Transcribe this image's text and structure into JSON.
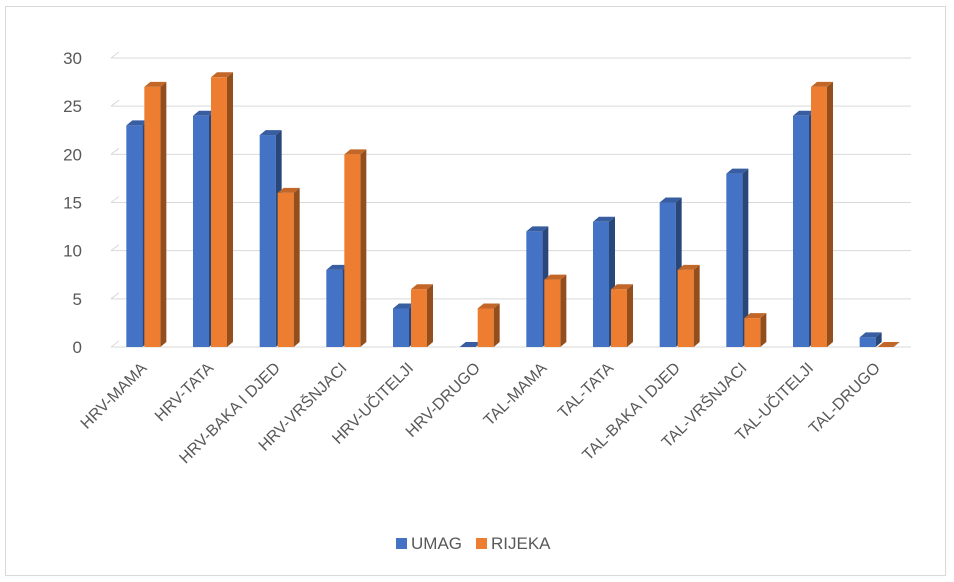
{
  "chart_data": {
    "type": "bar",
    "style": "3d-clustered-column",
    "categories": [
      "HRV-MAMA",
      "HRV-TATA",
      "HRV-BAKA I DJED",
      "HRV-VRŠNJACI",
      "HRV-UČITELJI",
      "HRV-DRUGO",
      "TAL-MAMA",
      "TAL-TATA",
      "TAL-BAKA I DJED",
      "TAL-VRŠNJACI",
      "TAL-UČITELJI",
      "TAL-DRUGO"
    ],
    "series": [
      {
        "name": "UMAG",
        "color": "#4472C4",
        "values": [
          23,
          24,
          22,
          8,
          4,
          0,
          12,
          13,
          15,
          18,
          24,
          1
        ]
      },
      {
        "name": "RIJEKA",
        "color": "#ED7D31",
        "values": [
          27,
          28,
          16,
          20,
          6,
          4,
          7,
          6,
          8,
          3,
          27,
          0
        ]
      }
    ],
    "ylim": [
      0,
      30
    ],
    "yticks": [
      "0",
      "5",
      "10",
      "15",
      "20",
      "25",
      "30"
    ],
    "grid": true,
    "legend_position": "bottom"
  }
}
